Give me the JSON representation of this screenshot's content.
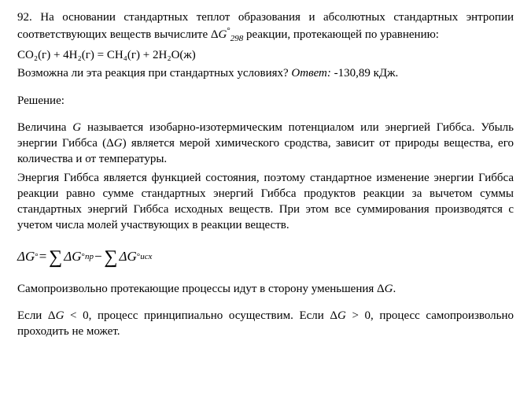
{
  "problem": {
    "number_text": "92. На основании стандартных теплот образования и абсолютных стандарт­ных энтропии соответствующих веществ вычислите Δ",
    "g_symbol": "G",
    "deg": "°",
    "sub298": "298",
    "after_g": " реакции, проте­кающей по уравнению:",
    "equation": "CO₂(г) + 4H₂(г) = CH₄(г) + 2H₂O(ж)",
    "question": "Возможна ли эта реакция при стандартных условиях? ",
    "answer_label": "Ответ:",
    "answer_value": " -130,89 кДж."
  },
  "solution_label": "Решение:",
  "body": {
    "p1": "Величина G называется изобарно-изотермическим потенциалом или энер­гией Гиббса. Убыль энергии Гиббса (ΔG) является мерой химического срод­ства, зависит от природы вещества, его количества и от температуры.",
    "p2": "Энергия Гиббса является функцией состояния, поэтому стандартное изме­нение энергии Гиббса реакции равно сумме стандартных энергий Гиббса продуктов реакции за вычетом суммы стандартных энергий Гиббса исход­ных веществ. При этом все суммирования производятся с учетом числа мо­лей участвующих в реакции веществ."
  },
  "formula": {
    "delta": "Δ",
    "G": "G",
    "deg": "°",
    "eq": " = ",
    "sigma": "∑",
    "sub_pr": "пр",
    "minus": " − ",
    "sub_isx": "исх"
  },
  "after_formula": {
    "p3": "Самопроизвольно протекающие процессы идут в сторону уменьшения ΔG.",
    "p4_a": "Если Δ",
    "p4_b": "G",
    "p4_c": " < 0, процесс принципиально осуществим. Если Δ",
    "p4_d": "G",
    "p4_e": " > 0, процесс само­произвольно проходить не может."
  },
  "style": {
    "background": "#ffffff",
    "text_color": "#000000",
    "font_size_body": 15,
    "font_size_formula": 17,
    "font_family": "Times New Roman"
  }
}
